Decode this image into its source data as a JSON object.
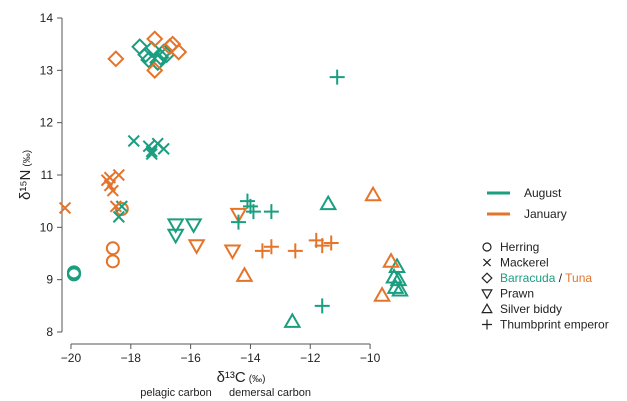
{
  "chart_data": {
    "type": "scatter",
    "xlabel": {
      "main": "δ¹³C",
      "unit": "(‰)"
    },
    "ylabel": {
      "main": "δ¹⁵N",
      "unit": "(‰)"
    },
    "xlim": [
      -20.3,
      -9.0
    ],
    "ylim": [
      8.0,
      14.0
    ],
    "xticks": [
      -20,
      -18,
      -16,
      -14,
      -12,
      -10
    ],
    "yticks": [
      8,
      9,
      10,
      11,
      12,
      13,
      14
    ],
    "grid": false,
    "legend_position": "right",
    "bottom_annotations": [
      "pelagic carbon",
      "demersal carbon"
    ],
    "months": [
      {
        "name": "August",
        "color": "#1a9e80"
      },
      {
        "name": "January",
        "color": "#e5742a"
      }
    ],
    "species": [
      {
        "name": "Herring",
        "marker": "circle"
      },
      {
        "name": "Mackerel",
        "marker": "x"
      },
      {
        "name": "Barracuda",
        "name2": "Tuna",
        "sep": " / ",
        "marker": "diamond"
      },
      {
        "name": "Prawn",
        "marker": "triangle-down"
      },
      {
        "name": "Silver biddy",
        "marker": "triangle-up"
      },
      {
        "name": "Thumbprint emperor",
        "marker": "plus"
      }
    ],
    "series": [
      {
        "month": "August",
        "species": "Herring",
        "x": [
          -19.9,
          -19.9,
          -19.9
        ],
        "y": [
          9.12,
          9.1,
          9.14
        ]
      },
      {
        "month": "January",
        "species": "Herring",
        "x": [
          -18.6,
          -18.6,
          -18.3
        ],
        "y": [
          9.6,
          9.35,
          10.35
        ]
      },
      {
        "month": "August",
        "species": "Mackerel",
        "x": [
          -17.9,
          -18.3,
          -18.4,
          -17.4,
          -17.3,
          -17.1,
          -16.9,
          -17.3
        ],
        "y": [
          11.65,
          10.4,
          10.2,
          11.55,
          11.45,
          11.6,
          11.5,
          11.4
        ]
      },
      {
        "month": "January",
        "species": "Mackerel",
        "x": [
          -20.2,
          -18.8,
          -18.7,
          -18.6,
          -18.4,
          -18.5,
          -18.7
        ],
        "y": [
          10.37,
          10.9,
          10.8,
          10.7,
          11.0,
          10.4,
          10.95
        ]
      },
      {
        "month": "August",
        "species": "Barracuda",
        "x": [
          -17.7,
          -17.5,
          -17.3,
          -17.0,
          -16.9,
          -16.8,
          -17.4,
          -17.1
        ],
        "y": [
          13.45,
          13.3,
          13.4,
          13.25,
          13.35,
          13.3,
          13.2,
          13.15
        ]
      },
      {
        "month": "January",
        "species": "Tuna",
        "x": [
          -18.5,
          -17.2,
          -17.2,
          -16.7,
          -16.4,
          -16.6
        ],
        "y": [
          13.22,
          13.6,
          13.0,
          13.45,
          13.35,
          13.5
        ]
      },
      {
        "month": "August",
        "species": "Prawn",
        "x": [
          -16.5,
          -16.5,
          -15.9
        ],
        "y": [
          10.05,
          9.85,
          10.05
        ]
      },
      {
        "month": "January",
        "species": "Prawn",
        "x": [
          -15.8,
          -14.6,
          -14.4
        ],
        "y": [
          9.65,
          9.55,
          10.25
        ]
      },
      {
        "month": "August",
        "species": "Silver biddy",
        "x": [
          -11.4,
          -12.6,
          -9.2,
          -9.1,
          -9.15,
          -9.0,
          -9.05
        ],
        "y": [
          10.45,
          8.2,
          9.05,
          9.25,
          8.85,
          8.8,
          9.0
        ]
      },
      {
        "month": "January",
        "species": "Silver biddy",
        "x": [
          -14.2,
          -9.9,
          -9.6,
          -9.3
        ],
        "y": [
          9.08,
          10.62,
          8.7,
          9.35
        ]
      },
      {
        "month": "August",
        "species": "Thumbprint emperor",
        "x": [
          -11.1,
          -14.4,
          -14.1,
          -14.0,
          -13.9,
          -13.3,
          -11.6
        ],
        "y": [
          12.87,
          10.1,
          10.5,
          10.4,
          10.3,
          10.3,
          8.5
        ]
      },
      {
        "month": "January",
        "species": "Thumbprint emperor",
        "x": [
          -13.6,
          -13.3,
          -12.5,
          -11.8,
          -11.6,
          -11.3
        ],
        "y": [
          9.55,
          9.63,
          9.55,
          9.75,
          9.65,
          9.7
        ]
      }
    ]
  }
}
